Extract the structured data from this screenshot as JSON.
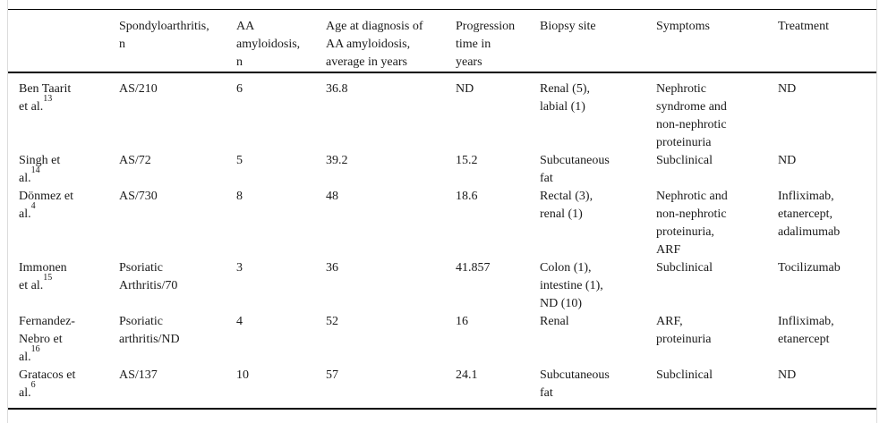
{
  "page": {
    "background_color": "#ffffff",
    "text_color": "#1a1a1a",
    "rule_color": "#000000",
    "frame_border_color": "#dcdcdc"
  },
  "table": {
    "headers": [
      "",
      "Spondyloarthritis,\nn",
      "AA\namyloidosis,\nn",
      "Age at diagnosis of\nAA amyloidosis,\naverage in years",
      "Progression\ntime in\nyears",
      "Biopsy site",
      "Symptoms",
      "Treatment"
    ],
    "rows": [
      {
        "study": "Ben Taarit\net al.",
        "ref": "13",
        "spondyloarthritis_n": "AS/210",
        "aa_amyloidosis_n": "6",
        "age_at_diagnosis": "36.8",
        "progression_time": "ND",
        "biopsy_site": "Renal (5),\nlabial (1)",
        "symptoms": "Nephrotic\nsyndrome and\nnon-nephrotic\nproteinuria",
        "treatment": "ND"
      },
      {
        "study": "Singh et\nal.",
        "ref": "14",
        "spondyloarthritis_n": "AS/72",
        "aa_amyloidosis_n": "5",
        "age_at_diagnosis": "39.2",
        "progression_time": "15.2",
        "biopsy_site": "Subcutaneous\nfat",
        "symptoms": "Subclinical",
        "treatment": "ND"
      },
      {
        "study": "Dönmez et\nal.",
        "ref": "4",
        "spondyloarthritis_n": "AS/730",
        "aa_amyloidosis_n": "8",
        "age_at_diagnosis": "48",
        "progression_time": "18.6",
        "biopsy_site": "Rectal (3),\nrenal (1)",
        "symptoms": "Nephrotic and\nnon-nephrotic\nproteinuria,\nARF",
        "treatment": "Infliximab,\netanercept,\nadalimumab"
      },
      {
        "study": "Immonen\net al.",
        "ref": "15",
        "spondyloarthritis_n": "Psoriatic\nArthritis/70",
        "aa_amyloidosis_n": "3",
        "age_at_diagnosis": "36",
        "progression_time": "41.857",
        "biopsy_site": "Colon (1),\nintestine (1),\nND (10)",
        "symptoms": "Subclinical",
        "treatment": "Tocilizumab"
      },
      {
        "study": "Fernandez-\nNebro et\nal.",
        "ref": "16",
        "spondyloarthritis_n": "Psoriatic\narthritis/ND",
        "aa_amyloidosis_n": "4",
        "age_at_diagnosis": "52",
        "progression_time": "16",
        "biopsy_site": "Renal",
        "symptoms": "ARF,\nproteinuria",
        "treatment": "Infliximab,\netanercept"
      },
      {
        "study": "Gratacos et\nal.",
        "ref": "6",
        "spondyloarthritis_n": "AS/137",
        "aa_amyloidosis_n": "10",
        "age_at_diagnosis": "57",
        "progression_time": "24.1",
        "biopsy_site": "Subcutaneous\nfat",
        "symptoms": "Subclinical",
        "treatment": "ND"
      }
    ]
  }
}
